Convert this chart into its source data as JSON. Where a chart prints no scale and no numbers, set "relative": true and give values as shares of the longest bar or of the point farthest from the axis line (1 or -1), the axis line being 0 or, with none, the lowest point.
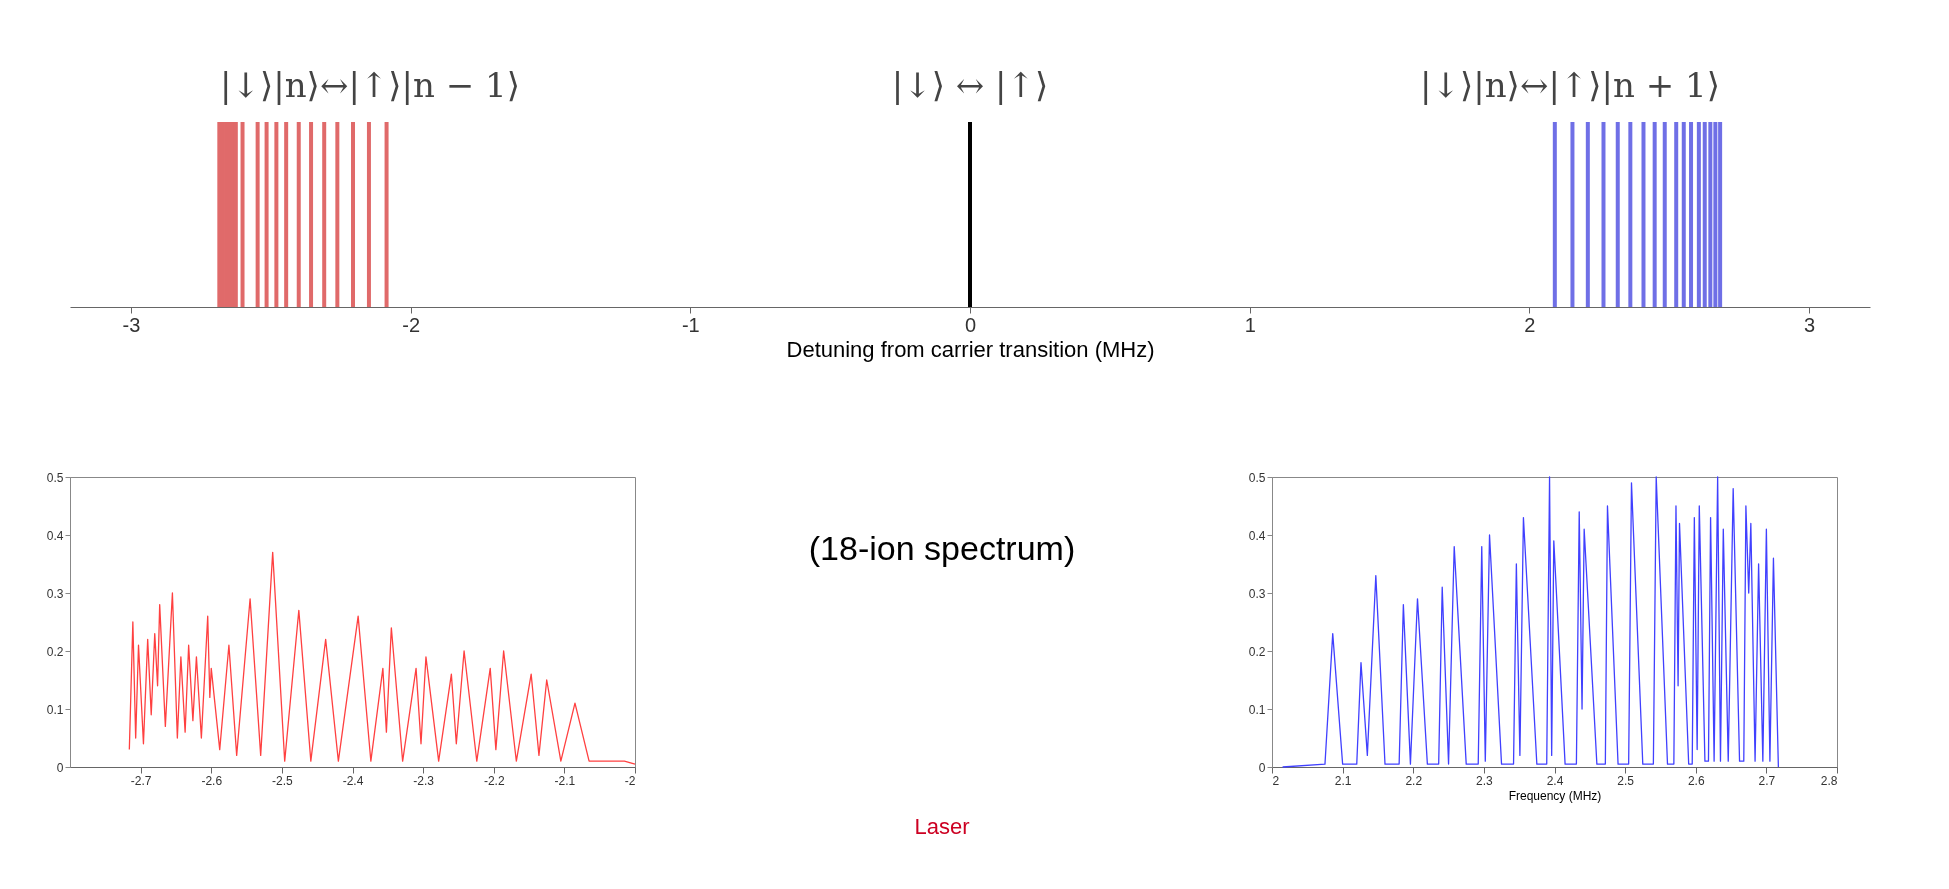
{
  "chart_data": [
    {
      "type": "bar",
      "relative": true,
      "xlabel": "Detuning from carrier transition (MHz)",
      "xlim": [
        -3.2,
        3.2
      ],
      "xticks": [
        -3,
        -2,
        -1,
        0,
        1,
        2,
        3
      ],
      "annotations": [
        "|↓⟩|n⟩↔|↑⟩|n − 1⟩",
        "|↓⟩ ↔ |↑⟩",
        "|↓⟩|n⟩↔|↑⟩|n + 1⟩"
      ],
      "series": [
        {
          "color": "#e06a6a",
          "x": [
            -2.684,
            -2.672,
            -2.66,
            -2.648,
            -2.637,
            -2.625,
            -2.601,
            -2.547,
            -2.515,
            -2.48,
            -2.445,
            -2.4,
            -2.356,
            -2.309,
            -2.262,
            -2.206,
            -2.149,
            -2.086
          ],
          "values": [
            1,
            1,
            1,
            1,
            1,
            1,
            1,
            1,
            1,
            1,
            1,
            1,
            1,
            1,
            1,
            1,
            1,
            1
          ]
        },
        {
          "color": "#000000",
          "x": [
            0
          ],
          "values": [
            1
          ]
        },
        {
          "color": "#6f6fe6",
          "x": [
            2.091,
            2.154,
            2.209,
            2.265,
            2.316,
            2.361,
            2.408,
            2.448,
            2.484,
            2.525,
            2.552,
            2.578,
            2.606,
            2.627,
            2.647,
            2.665,
            2.682
          ],
          "values": [
            1,
            1,
            1,
            1,
            1,
            1,
            1,
            1,
            1,
            1,
            1,
            1,
            1,
            1,
            1,
            1,
            1
          ]
        }
      ]
    },
    {
      "type": "line",
      "xlim": [
        -2.8,
        -2
      ],
      "xticks": [
        -2.7,
        -2.6,
        -2.5,
        -2.4,
        -2.3,
        -2.2,
        -2.1,
        -2
      ],
      "ylim": [
        0,
        0.5
      ],
      "yticks": [
        0,
        0.1,
        0.2,
        0.3,
        0.4,
        0.5
      ],
      "series": [
        {
          "color": "#ff4040",
          "x": [
            -2.716,
            -2.711,
            -2.707,
            -2.703,
            -2.696,
            -2.69,
            -2.685,
            -2.68,
            -2.676,
            -2.673,
            -2.665,
            -2.655,
            -2.648,
            -2.643,
            -2.637,
            -2.632,
            -2.626,
            -2.621,
            -2.614,
            -2.605,
            -2.602,
            -2.6,
            -2.588,
            -2.575,
            -2.564,
            -2.545,
            -2.53,
            -2.513,
            -2.496,
            -2.476,
            -2.459,
            -2.438,
            -2.42,
            -2.392,
            -2.374,
            -2.357,
            -2.352,
            -2.345,
            -2.329,
            -2.31,
            -2.303,
            -2.296,
            -2.278,
            -2.26,
            -2.253,
            -2.242,
            -2.224,
            -2.205,
            -2.197,
            -2.186,
            -2.168,
            -2.147,
            -2.136,
            -2.125,
            -2.105,
            -2.085,
            -2.065,
            -2.015,
            -2.0
          ],
          "values": [
            0.03,
            0.25,
            0.05,
            0.21,
            0.04,
            0.22,
            0.09,
            0.23,
            0.14,
            0.28,
            0.07,
            0.3,
            0.05,
            0.19,
            0.06,
            0.21,
            0.08,
            0.19,
            0.05,
            0.26,
            0.12,
            0.17,
            0.03,
            0.21,
            0.02,
            0.29,
            0.02,
            0.37,
            0.01,
            0.27,
            0.01,
            0.22,
            0.01,
            0.26,
            0.01,
            0.17,
            0.06,
            0.24,
            0.01,
            0.17,
            0.04,
            0.19,
            0.01,
            0.16,
            0.04,
            0.2,
            0.01,
            0.17,
            0.03,
            0.2,
            0.01,
            0.16,
            0.02,
            0.15,
            0.01,
            0.11,
            0.01,
            0.01,
            0.005
          ]
        }
      ]
    },
    {
      "type": "other",
      "annotations": [
        "(18-ion spectrum)",
        "Laser"
      ]
    },
    {
      "type": "line",
      "xlabel": "Frequency (MHz)",
      "xlim": [
        2,
        2.8
      ],
      "xticks": [
        2,
        2.1,
        2.2,
        2.3,
        2.4,
        2.5,
        2.6,
        2.7,
        2.8
      ],
      "ylim": [
        0,
        0.5
      ],
      "yticks": [
        0,
        0.1,
        0.2,
        0.3,
        0.4,
        0.5
      ],
      "series": [
        {
          "color": "#4040ff",
          "x": [
            2.015,
            2.075,
            2.086,
            2.1,
            2.12,
            2.126,
            2.135,
            2.147,
            2.16,
            2.18,
            2.186,
            2.196,
            2.206,
            2.22,
            2.236,
            2.241,
            2.25,
            2.258,
            2.275,
            2.292,
            2.297,
            2.302,
            2.308,
            2.325,
            2.342,
            2.346,
            2.351,
            2.356,
            2.375,
            2.389,
            2.393,
            2.396,
            2.399,
            2.415,
            2.431,
            2.435,
            2.439,
            2.442,
            2.46,
            2.472,
            2.475,
            2.49,
            2.505,
            2.509,
            2.525,
            2.54,
            2.544,
            2.56,
            2.569,
            2.572,
            2.575,
            2.577,
            2.59,
            2.595,
            2.598,
            2.602,
            2.605,
            2.613,
            2.618,
            2.621,
            2.626,
            2.631,
            2.635,
            2.639,
            2.646,
            2.653,
            2.662,
            2.668,
            2.671,
            2.675,
            2.678,
            2.684,
            2.689,
            2.695,
            2.7,
            2.705,
            2.71,
            2.717
          ],
          "values": [
            0.0,
            0.005,
            0.23,
            0.005,
            0.005,
            0.18,
            0.02,
            0.33,
            0.005,
            0.005,
            0.28,
            0.005,
            0.29,
            0.005,
            0.005,
            0.31,
            0.005,
            0.38,
            0.005,
            0.005,
            0.38,
            0.01,
            0.4,
            0.005,
            0.005,
            0.35,
            0.02,
            0.43,
            0.005,
            0.005,
            0.5,
            0.02,
            0.39,
            0.005,
            0.005,
            0.44,
            0.1,
            0.41,
            0.005,
            0.005,
            0.45,
            0.005,
            0.005,
            0.49,
            0.005,
            0.005,
            0.5,
            0.005,
            0.005,
            0.45,
            0.14,
            0.42,
            0.005,
            0.005,
            0.43,
            0.03,
            0.45,
            0.01,
            0.01,
            0.43,
            0.01,
            0.5,
            0.01,
            0.41,
            0.01,
            0.48,
            0.01,
            0.01,
            0.45,
            0.3,
            0.42,
            0.01,
            0.35,
            0.01,
            0.41,
            0.01,
            0.36,
            0.0
          ]
        }
      ]
    }
  ]
}
